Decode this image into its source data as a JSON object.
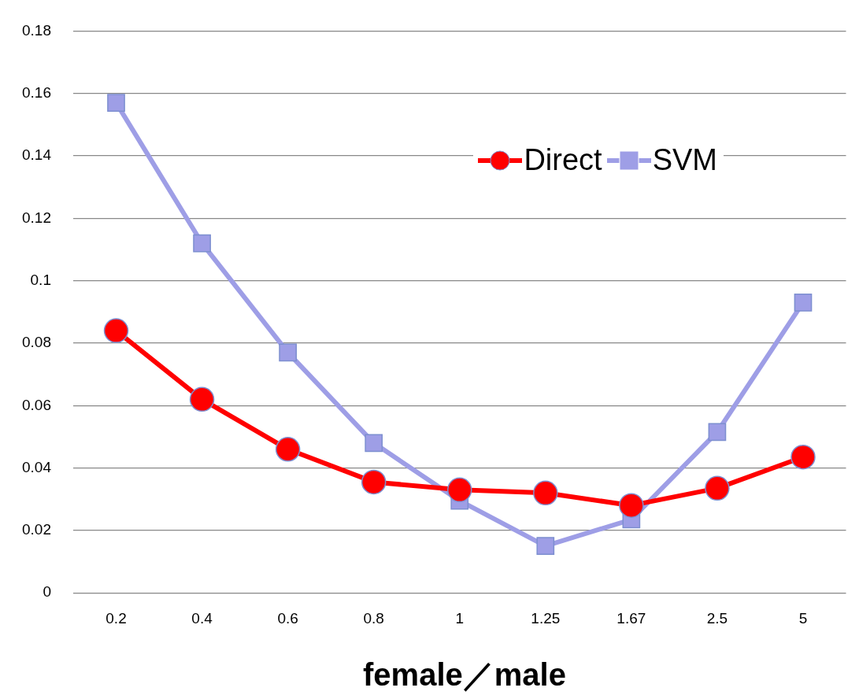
{
  "chart_data": {
    "type": "line",
    "xlabel": "female／male",
    "categories": [
      "0.2",
      "0.4",
      "0.6",
      "0.8",
      "1",
      "1.25",
      "1.67",
      "2.5",
      "5"
    ],
    "series": [
      {
        "name": "Direct",
        "color": "#ff0000",
        "marker": "circle",
        "values": [
          0.084,
          0.062,
          0.046,
          0.0355,
          0.033,
          0.032,
          0.028,
          0.0335,
          0.0435
        ]
      },
      {
        "name": "SVM",
        "color": "#9e9ee6",
        "marker": "square",
        "values": [
          0.157,
          0.112,
          0.077,
          0.048,
          0.0295,
          0.015,
          0.0235,
          0.0515,
          0.093
        ]
      }
    ],
    "ylim": [
      0,
      0.18
    ],
    "yticks": [
      0,
      0.02,
      0.04,
      0.06,
      0.08,
      0.1,
      0.12,
      0.14,
      0.16,
      0.18
    ],
    "grid": "y",
    "legend": "top right",
    "line_style": "solid"
  }
}
